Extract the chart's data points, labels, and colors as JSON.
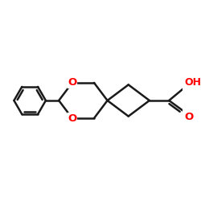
{
  "background": "#ffffff",
  "bond_color": "#1a1a1a",
  "o_color": "#ff0000",
  "bond_width": 1.8,
  "figsize": [
    2.5,
    2.5
  ],
  "dpi": 100,
  "xlim": [
    -2.3,
    1.6
  ],
  "ylim": [
    -1.1,
    1.1
  ]
}
